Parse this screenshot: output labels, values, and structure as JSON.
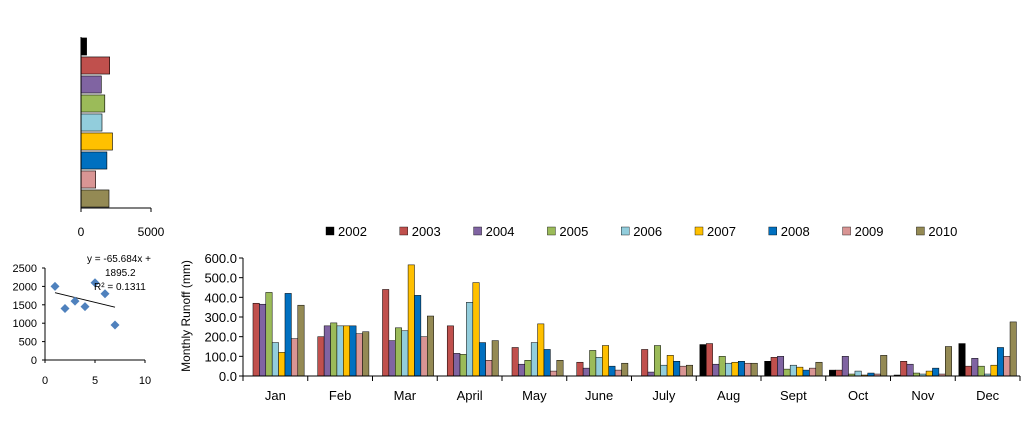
{
  "chart_data": [
    {
      "type": "bar",
      "orientation": "horizontal",
      "categories": [
        "2002",
        "2003",
        "2004",
        "2005",
        "2006",
        "2007",
        "2008",
        "2009",
        "2010"
      ],
      "values": [
        400,
        2050,
        1450,
        1700,
        1500,
        2250,
        1850,
        1050,
        2000
      ],
      "colors": [
        "#000000",
        "#c0504d",
        "#8064a2",
        "#9bbb59",
        "#92cddc",
        "#ffc000",
        "#0070c0",
        "#d99594",
        "#948a54"
      ],
      "xlim": [
        0,
        5000
      ],
      "xticks": [
        "0",
        "5000"
      ],
      "grid": false
    },
    {
      "type": "scatter",
      "points": [
        [
          1,
          2000
        ],
        [
          2,
          1400
        ],
        [
          3,
          1600
        ],
        [
          4,
          1450
        ],
        [
          5,
          2100
        ],
        [
          6,
          1800
        ],
        [
          7,
          950
        ]
      ],
      "color": "#4f81bd",
      "trendline": {
        "slope": -65.684,
        "intercept": 1895.2
      },
      "equation_lines": [
        "y = -65.684x +",
        "1895.2",
        "R² = 0.1311"
      ],
      "xlim": [
        0,
        10
      ],
      "ylim": [
        0,
        2500
      ],
      "xticks": [
        "0",
        "5",
        "10"
      ],
      "yticks": [
        "0",
        "500",
        "1000",
        "1500",
        "2000",
        "2500"
      ],
      "grid": false
    },
    {
      "type": "bar",
      "categories": [
        "Jan",
        "Feb",
        "Mar",
        "April",
        "May",
        "June",
        "July",
        "Aug",
        "Sept",
        "Oct",
        "Nov",
        "Dec"
      ],
      "ylabel": "Monthly  Runoff (mm)",
      "ylim": [
        0,
        600
      ],
      "yticks": [
        "0.0",
        "100.0",
        "200.0",
        "300.0",
        "400.0",
        "500.0",
        "600.0"
      ],
      "legend_position": "top",
      "grid": false,
      "series": [
        {
          "name": "2002",
          "color": "#000000",
          "values": [
            0,
            0,
            0,
            0,
            0,
            0,
            0,
            160,
            75,
            30,
            5,
            165
          ]
        },
        {
          "name": "2003",
          "color": "#c0504d",
          "values": [
            370,
            200,
            440,
            255,
            145,
            70,
            135,
            165,
            95,
            30,
            75,
            50
          ]
        },
        {
          "name": "2004",
          "color": "#8064a2",
          "values": [
            365,
            255,
            180,
            115,
            60,
            40,
            20,
            60,
            100,
            100,
            60,
            90
          ]
        },
        {
          "name": "2005",
          "color": "#9bbb59",
          "values": [
            425,
            270,
            245,
            110,
            80,
            130,
            155,
            100,
            35,
            10,
            15,
            50
          ]
        },
        {
          "name": "2006",
          "color": "#92cddc",
          "values": [
            170,
            255,
            230,
            375,
            170,
            95,
            55,
            65,
            55,
            25,
            10,
            10
          ]
        },
        {
          "name": "2007",
          "color": "#ffc000",
          "values": [
            120,
            255,
            565,
            475,
            265,
            155,
            105,
            70,
            45,
            5,
            25,
            55
          ]
        },
        {
          "name": "2008",
          "color": "#0070c0",
          "values": [
            420,
            255,
            410,
            170,
            135,
            50,
            75,
            75,
            30,
            15,
            40,
            145
          ]
        },
        {
          "name": "2009",
          "color": "#d99594",
          "values": [
            190,
            215,
            200,
            80,
            25,
            30,
            50,
            65,
            40,
            10,
            10,
            100
          ]
        },
        {
          "name": "2010",
          "color": "#948a54",
          "values": [
            360,
            225,
            305,
            180,
            80,
            65,
            55,
            65,
            70,
            105,
            150,
            275
          ]
        }
      ]
    }
  ]
}
